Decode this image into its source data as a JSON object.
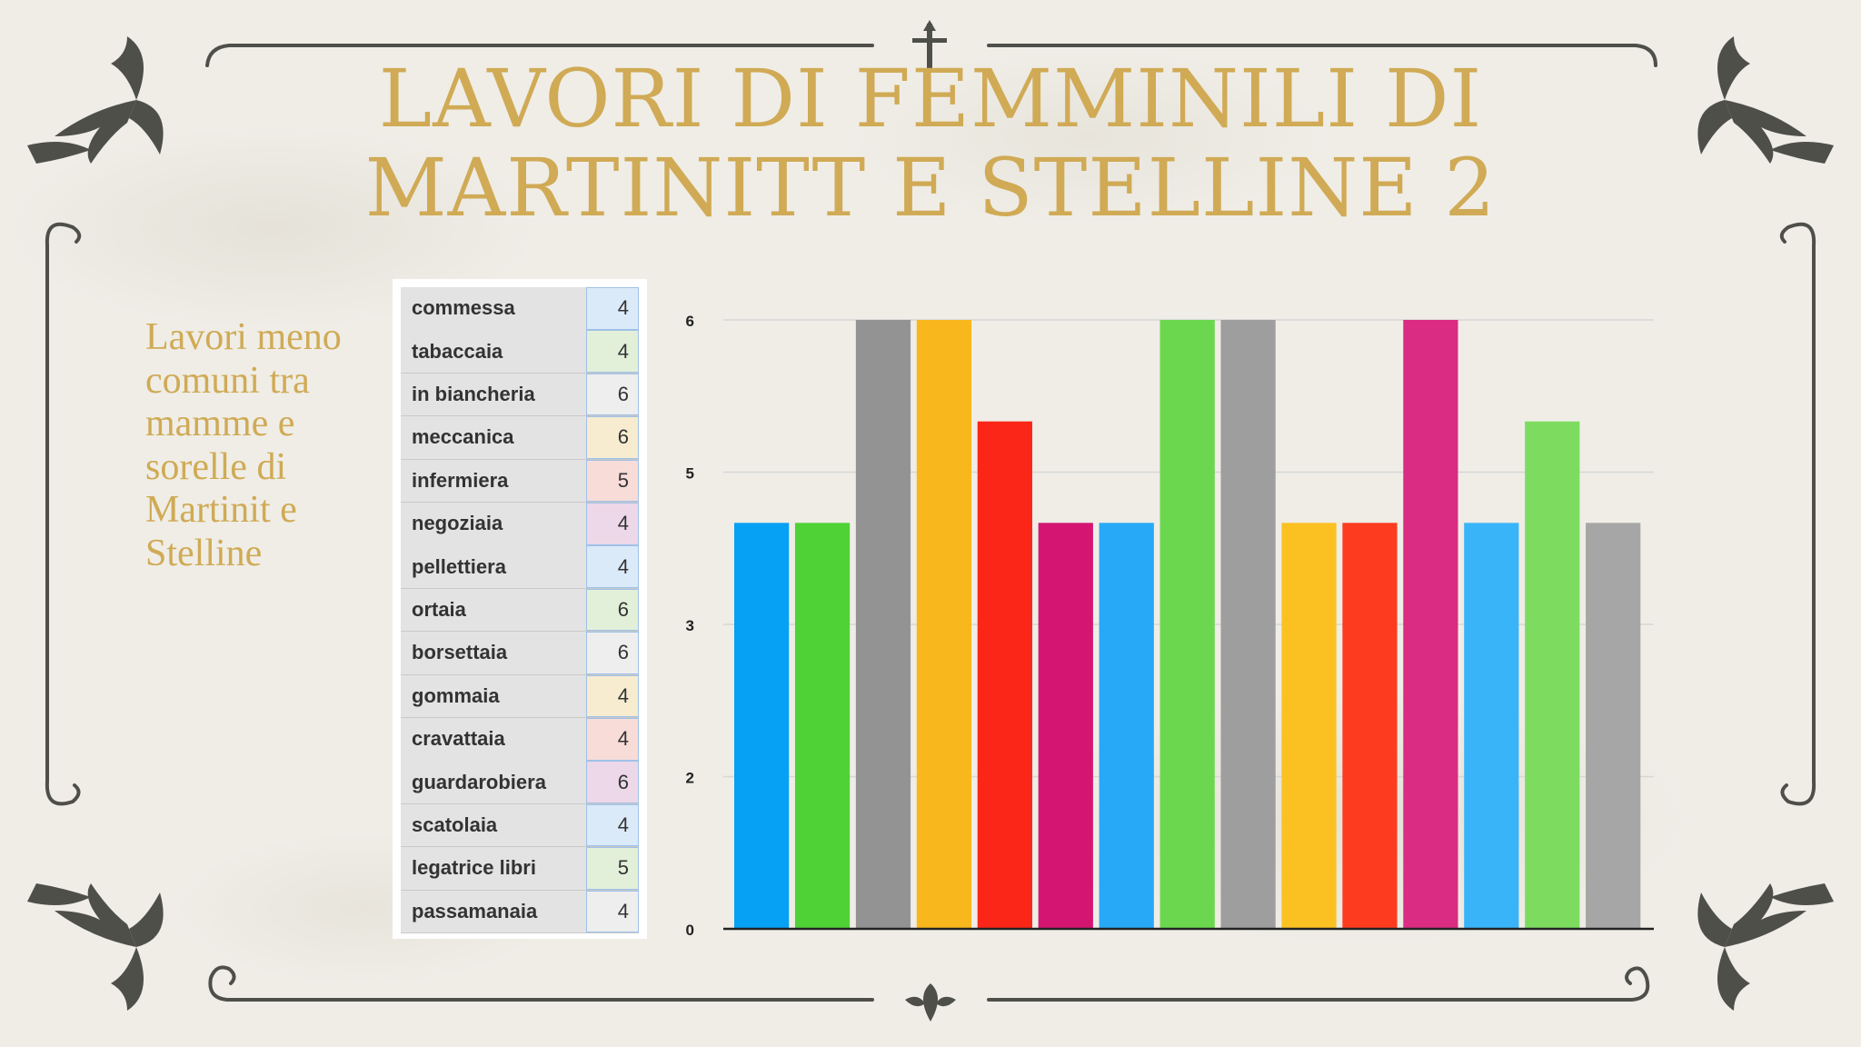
{
  "slide": {
    "title": "LAVORI DI FEMMINILI DI MARTINITT E STELLINE 2",
    "sidebar_text": "Lavori meno comuni tra mamme e sorelle di Martinit e Stelline"
  },
  "table": {
    "rows": [
      {
        "label": "commessa",
        "value": "4"
      },
      {
        "label": "tabaccaia",
        "value": "4"
      },
      {
        "label": "in biancheria",
        "value": "6"
      },
      {
        "label": "meccanica",
        "value": "6"
      },
      {
        "label": "infermiera",
        "value": "5"
      },
      {
        "label": "negoziaia",
        "value": "4"
      },
      {
        "label": "pellettiera",
        "value": "4"
      },
      {
        "label": "ortaia",
        "value": "6"
      },
      {
        "label": "borsettaia",
        "value": "6"
      },
      {
        "label": "gommaia",
        "value": "4"
      },
      {
        "label": "cravattaia",
        "value": "4"
      },
      {
        "label": "guardarobiera",
        "value": "6"
      },
      {
        "label": "scatolaia",
        "value": "4"
      },
      {
        "label": "legatrice libri",
        "value": "5"
      },
      {
        "label": "passamanaia",
        "value": "4"
      }
    ],
    "value_tints": [
      "#dbeaf8",
      "#e2f0da",
      "#eeeeee",
      "#f7ecd0",
      "#f8dcd8",
      "#ecd8e8",
      "#dbeaf8",
      "#e2f0da",
      "#eeeeee",
      "#f7ecd0",
      "#f8dcd8",
      "#ecd8e8",
      "#dbeaf8",
      "#e2f0da",
      "#eeeeee"
    ]
  },
  "chart_data": {
    "type": "bar",
    "categories": [
      "commessa",
      "tabaccaia",
      "in biancheria",
      "meccanica",
      "infermiera",
      "negoziaia",
      "pellettiera",
      "ortaia",
      "borsettaia",
      "gommaia",
      "cravattaia",
      "guardarobiera",
      "scatolaia",
      "legatrice libri",
      "passamanaia"
    ],
    "values": [
      4,
      4,
      6,
      6,
      5,
      4,
      4,
      6,
      6,
      4,
      4,
      6,
      4,
      5,
      4
    ],
    "colors": [
      "#06a0f5",
      "#4fd236",
      "#939393",
      "#f8b71c",
      "#fb2617",
      "#d41672",
      "#27a9f8",
      "#6bd74e",
      "#9e9e9e",
      "#fbc122",
      "#fd3c1f",
      "#d92c82",
      "#3ab4f9",
      "#7ddc60",
      "#a6a6a6"
    ],
    "y_ticks": [
      "0",
      "2",
      "3",
      "5",
      "6"
    ],
    "ylim": [
      0,
      6
    ],
    "grid": true,
    "legend": "none"
  }
}
